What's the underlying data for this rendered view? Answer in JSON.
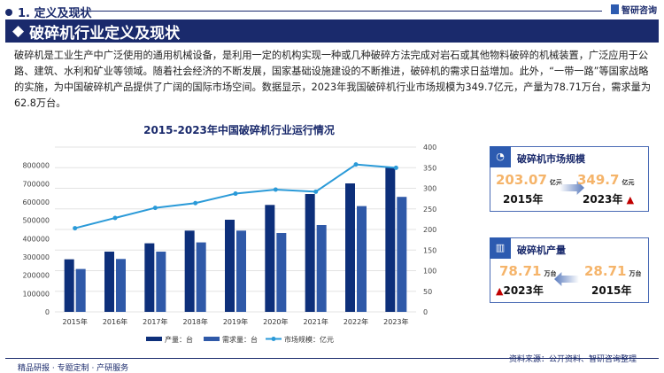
{
  "section": "1. 定义及现状",
  "logo": "智研咨询",
  "banner": "破碎机行业定义及现状",
  "paragraph": "破碎机是工业生产中广泛使用的通用机械设备，是利用一定的机构实现一种或几种破碎方法完成对岩石或其他物料破碎的机械装置，广泛应用于公路、建筑、水利和矿业等领域。随着社会经济的不断发展，国家基础设施建设的不断推进，破碎机的需求日益增加。此外，“一带一路”等国家战略的实施，为中国破碎机产品提供了广阔的国际市场空间。数据显示，2023年我国破碎机行业市场规模为349.7亿元，产量为78.71万台，需求量为62.8万台。",
  "chart_data": {
    "type": "bar+line",
    "title": "2015-2023年中国破碎机行业运行情况",
    "categories": [
      "2015年",
      "2016年",
      "2017年",
      "2018年",
      "2019年",
      "2020年",
      "2021年",
      "2022年",
      "2023年"
    ],
    "series": [
      {
        "name": "产量：台",
        "type": "bar",
        "axis": "left",
        "color": "#0d2f7a",
        "values": [
          287100,
          329000,
          374500,
          443700,
          503200,
          584000,
          643500,
          701600,
          787100
        ]
      },
      {
        "name": "需求量：台",
        "type": "bar",
        "axis": "left",
        "color": "#2f59a8",
        "values": [
          234200,
          288900,
          329000,
          379400,
          443700,
          430600,
          474200,
          577700,
          628000
        ]
      },
      {
        "name": "市场规模：亿元",
        "type": "line",
        "axis": "right",
        "color": "#2a9ad8",
        "values": [
          203.07,
          228,
          252.5,
          264,
          287,
          296.8,
          291.8,
          357.8,
          349.7
        ]
      }
    ],
    "ylim_left": [
      0,
      900000
    ],
    "yticks_left": [
      0,
      100000,
      200000,
      300000,
      400000,
      500000,
      600000,
      700000,
      800000
    ],
    "ylim_right": [
      0,
      400
    ],
    "yticks_right": [
      0,
      50,
      100,
      150,
      200,
      250,
      300,
      350,
      400
    ],
    "grid": true,
    "legend": "bottom"
  },
  "cards": [
    {
      "title": "破碎机市场规模",
      "icon": "pie-chart-icon",
      "left_value": "203.07",
      "left_unit": "亿元",
      "left_year": "2015年",
      "right_value": "349.7",
      "right_unit": "亿元",
      "right_year": "2023年"
    },
    {
      "title": "破碎机产量",
      "icon": "bar-chart-icon",
      "left_value": "78.71",
      "left_unit": "万台",
      "left_year": "2023年",
      "right_value": "28.71",
      "right_unit": "万台",
      "right_year": "2015年"
    }
  ],
  "source": "资料来源：公开资料、智研咨询整理",
  "footer": "精品研报 · 专题定制 · 产研服务"
}
